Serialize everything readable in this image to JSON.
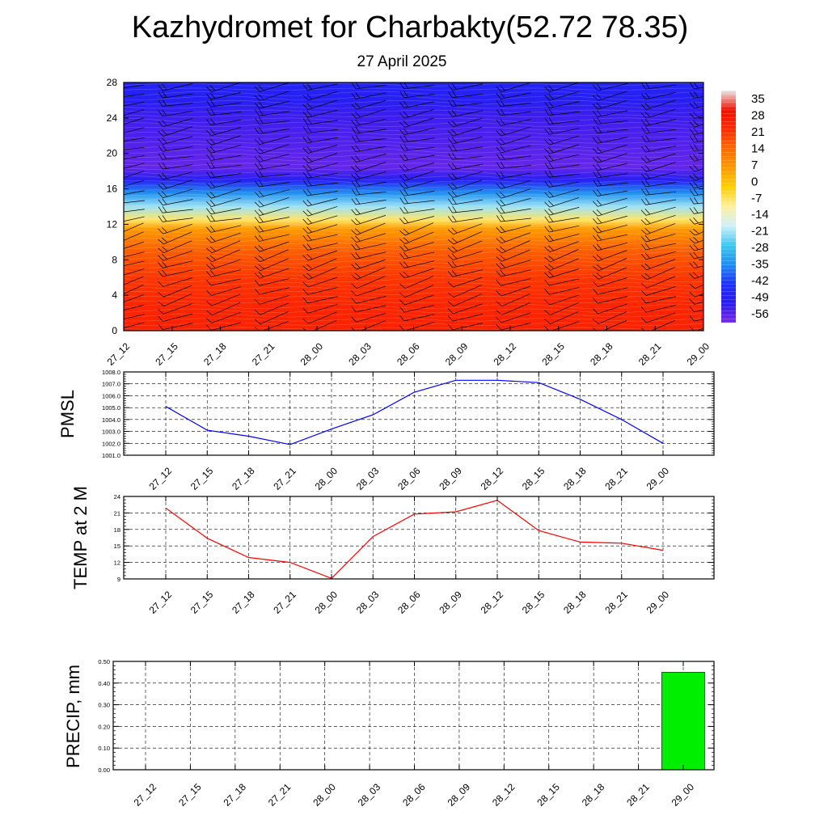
{
  "header": {
    "title": "Kazhydromet for Charbakty(52.72 78.35)",
    "subtitle": "27 April 2025"
  },
  "time_labels": [
    "27_12",
    "27_15",
    "27_18",
    "27_21",
    "28_00",
    "28_03",
    "28_06",
    "28_09",
    "28_12",
    "28_15",
    "28_18",
    "28_21",
    "29_00"
  ],
  "chart_data": [
    {
      "type": "heatmap",
      "name": "temperature-profile",
      "x": [
        "27_12",
        "27_15",
        "27_18",
        "27_21",
        "28_00",
        "28_03",
        "28_06",
        "28_09",
        "28_12",
        "28_15",
        "28_18",
        "28_21",
        "29_00"
      ],
      "yticks": [
        0,
        4,
        8,
        12,
        16,
        20,
        24,
        28
      ],
      "ylim": [
        0,
        28
      ],
      "colorbar": {
        "ticks": [
          "35",
          "28",
          "21",
          "14",
          "7",
          "0",
          "-7",
          "-14",
          "-21",
          "-28",
          "-35",
          "-42",
          "-49",
          "-56"
        ],
        "range": [
          -60,
          38
        ],
        "colors": [
          "#7a2ae8",
          "#2a1af0",
          "#1e30ff",
          "#1e8ff0",
          "#3cc8f0",
          "#d0f0f8",
          "#fff0a0",
          "#ffd000",
          "#ff9a00",
          "#ff6a00",
          "#ff2a00",
          "#f01000",
          "#e8e8e8"
        ]
      },
      "profile": [
        [
          0,
          24
        ],
        [
          3,
          23
        ],
        [
          6,
          20
        ],
        [
          9,
          15
        ],
        [
          11.5,
          5
        ],
        [
          12.5,
          -8
        ],
        [
          14,
          -22
        ],
        [
          15.5,
          -35
        ],
        [
          17,
          -50
        ],
        [
          18.5,
          -58
        ],
        [
          21,
          -56
        ],
        [
          24,
          -54
        ],
        [
          26,
          -50
        ],
        [
          28,
          -48
        ]
      ],
      "wind_barbs": true
    },
    {
      "type": "line",
      "name": "pmsl",
      "ylabel": "PMSL",
      "x": [
        "27_12",
        "27_15",
        "27_18",
        "27_21",
        "28_00",
        "28_03",
        "28_06",
        "28_09",
        "28_12",
        "28_15",
        "28_18",
        "28_21",
        "29_00"
      ],
      "values": [
        1005.1,
        1003.1,
        1002.6,
        1001.9,
        1003.2,
        1004.4,
        1006.3,
        1007.3,
        1007.3,
        1007.1,
        1005.7,
        1004.0,
        1002.0
      ],
      "ylim": [
        1001.0,
        1008.0
      ],
      "yticks": [
        "1001.0",
        "1002.0",
        "1003.0",
        "1004.0",
        "1005.0",
        "1006.0",
        "1007.0",
        "1008.0"
      ],
      "color": "#0000ff",
      "grid": true
    },
    {
      "type": "line",
      "name": "temp-2m",
      "ylabel": "TEMP at 2 M",
      "x": [
        "27_12",
        "27_15",
        "27_18",
        "27_21",
        "28_00",
        "28_03",
        "28_06",
        "28_09",
        "28_12",
        "28_15",
        "28_18",
        "28_21",
        "29_00"
      ],
      "values": [
        21.9,
        16.4,
        12.9,
        12.0,
        9.1,
        16.7,
        20.8,
        21.2,
        23.3,
        17.8,
        15.7,
        15.5,
        14.2
      ],
      "ylim": [
        9,
        24
      ],
      "yticks": [
        "9",
        "12",
        "15",
        "18",
        "21",
        "24"
      ],
      "color": "#ff0000",
      "grid": true
    },
    {
      "type": "bar",
      "name": "precip",
      "ylabel": "PRECIP, mm",
      "x": [
        "27_12",
        "27_15",
        "27_18",
        "27_21",
        "28_00",
        "28_03",
        "28_06",
        "28_09",
        "28_12",
        "28_15",
        "28_18",
        "28_21",
        "29_00"
      ],
      "values": [
        0,
        0,
        0,
        0,
        0,
        0,
        0,
        0,
        0,
        0,
        0,
        0,
        0.45
      ],
      "ylim": [
        0,
        0.5
      ],
      "yticks": [
        "0.00",
        "0.10",
        "0.20",
        "0.30",
        "0.40",
        "0.50"
      ],
      "color": "#00ee00",
      "grid": true
    }
  ]
}
